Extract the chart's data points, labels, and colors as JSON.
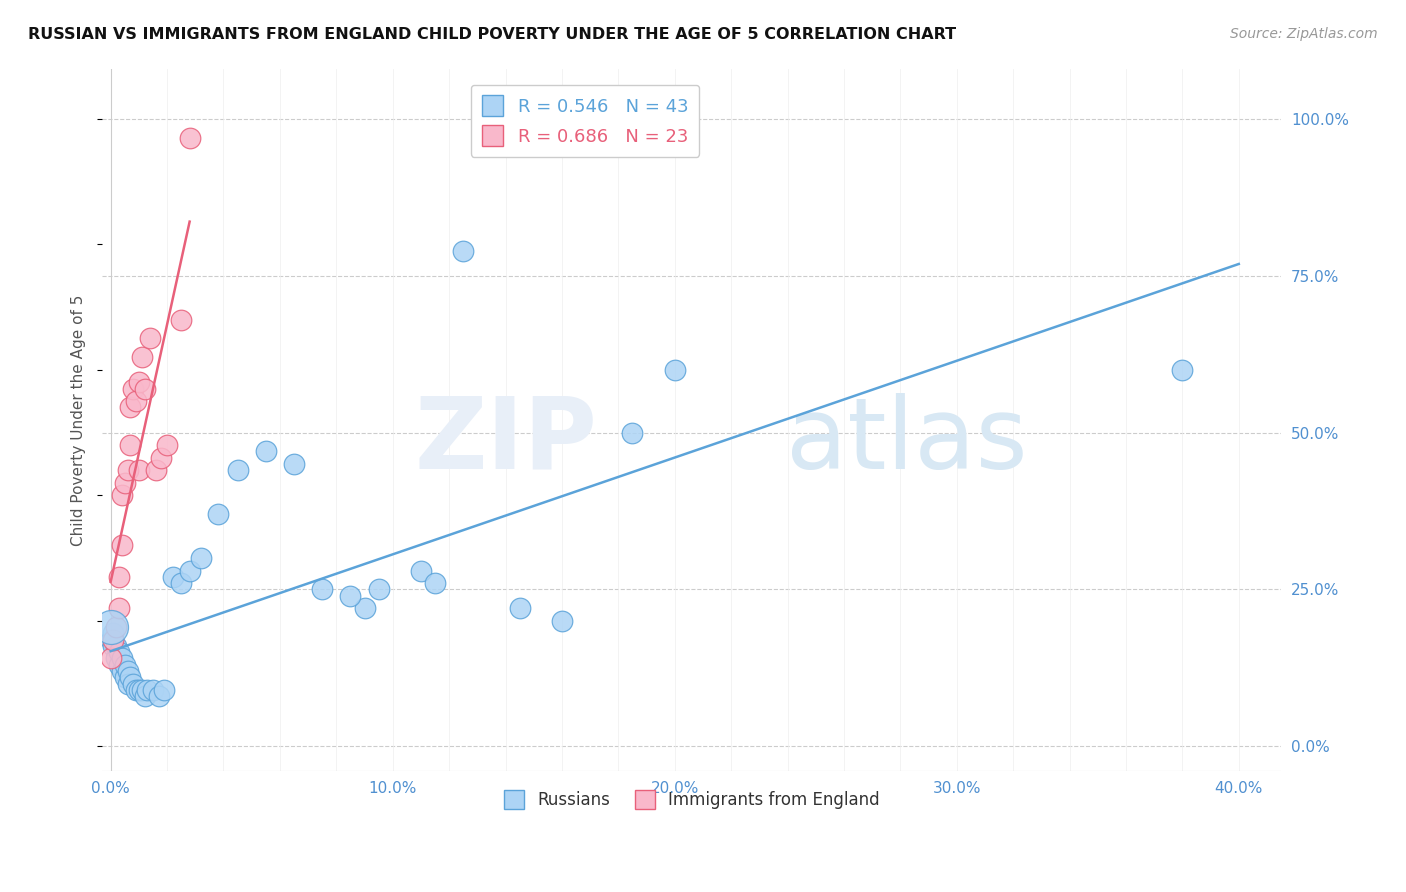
{
  "title": "RUSSIAN VS IMMIGRANTS FROM ENGLAND CHILD POVERTY UNDER THE AGE OF 5 CORRELATION CHART",
  "source": "Source: ZipAtlas.com",
  "xlabel_ticks": [
    "0.0%",
    "",
    "",
    "",
    "",
    "10.0%",
    "",
    "",
    "",
    "",
    "20.0%",
    "",
    "",
    "",
    "",
    "30.0%",
    "",
    "",
    "",
    "",
    "40.0%"
  ],
  "xlabel_vals": [
    0.0,
    0.02,
    0.04,
    0.06,
    0.08,
    0.1,
    0.12,
    0.14,
    0.16,
    0.18,
    0.2,
    0.22,
    0.24,
    0.26,
    0.28,
    0.3,
    0.32,
    0.34,
    0.36,
    0.38,
    0.4
  ],
  "xlabel_major_ticks": [
    "0.0%",
    "10.0%",
    "20.0%",
    "30.0%",
    "40.0%"
  ],
  "xlabel_major_vals": [
    0.0,
    0.1,
    0.2,
    0.3,
    0.4
  ],
  "ylabel": "Child Poverty Under the Age of 5",
  "ylabel_ticks": [
    "100.0%",
    "75.0%",
    "50.0%",
    "25.0%",
    "0.0%"
  ],
  "ylabel_vals": [
    1.0,
    0.75,
    0.5,
    0.25,
    0.0
  ],
  "xlim": [
    -0.003,
    0.415
  ],
  "ylim": [
    -0.04,
    1.08
  ],
  "blue_R": 0.546,
  "blue_N": 43,
  "pink_R": 0.686,
  "pink_N": 23,
  "blue_color": "#ADD4F5",
  "pink_color": "#F9B8CB",
  "blue_edge_color": "#5BA3D9",
  "pink_edge_color": "#E8607A",
  "blue_line_color": "#5BA3D9",
  "pink_line_color": "#E8607A",
  "legend_label_blue": "Russians",
  "legend_label_pink": "Immigrants from England",
  "russians_x": [
    0.0,
    0.001,
    0.001,
    0.002,
    0.002,
    0.003,
    0.003,
    0.004,
    0.004,
    0.005,
    0.005,
    0.006,
    0.006,
    0.007,
    0.008,
    0.009,
    0.01,
    0.011,
    0.012,
    0.013,
    0.015,
    0.017,
    0.019,
    0.022,
    0.025,
    0.028,
    0.032,
    0.038,
    0.045,
    0.055,
    0.065,
    0.075,
    0.09,
    0.11,
    0.125,
    0.145,
    0.16,
    0.185,
    0.2,
    0.085,
    0.095,
    0.115,
    0.38
  ],
  "russians_y": [
    0.17,
    0.16,
    0.18,
    0.14,
    0.16,
    0.13,
    0.15,
    0.12,
    0.14,
    0.11,
    0.13,
    0.12,
    0.1,
    0.11,
    0.1,
    0.09,
    0.09,
    0.09,
    0.08,
    0.09,
    0.09,
    0.08,
    0.09,
    0.27,
    0.26,
    0.28,
    0.3,
    0.37,
    0.44,
    0.47,
    0.45,
    0.25,
    0.22,
    0.28,
    0.79,
    0.22,
    0.2,
    0.5,
    0.6,
    0.24,
    0.25,
    0.26,
    0.6
  ],
  "england_x": [
    0.0,
    0.001,
    0.002,
    0.003,
    0.003,
    0.004,
    0.004,
    0.005,
    0.006,
    0.007,
    0.007,
    0.008,
    0.009,
    0.01,
    0.01,
    0.011,
    0.012,
    0.014,
    0.016,
    0.018,
    0.02,
    0.025,
    0.028
  ],
  "england_y": [
    0.14,
    0.17,
    0.19,
    0.22,
    0.27,
    0.32,
    0.4,
    0.42,
    0.44,
    0.48,
    0.54,
    0.57,
    0.55,
    0.58,
    0.44,
    0.62,
    0.57,
    0.65,
    0.44,
    0.46,
    0.48,
    0.68,
    0.97
  ]
}
